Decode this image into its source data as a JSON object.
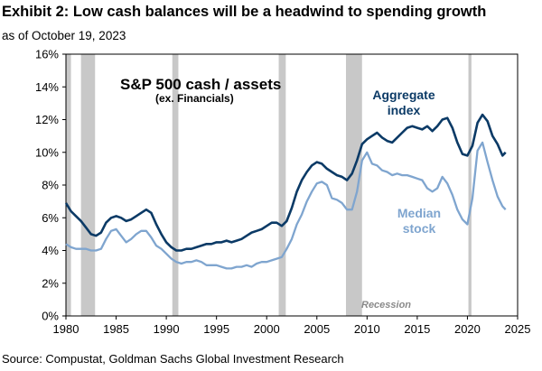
{
  "header": {
    "title": "Exhibit 2: Low cash balances will be a headwind to spending growth",
    "subtitle": "as of October 19, 2023"
  },
  "footer": {
    "source": "Source: Compustat, Goldman Sachs Global Investment Research"
  },
  "colors": {
    "aggregate": "#0b3a66",
    "median": "#7fa5cf",
    "recession": "#c8c8c8",
    "recession_label": "#8a8a8a"
  },
  "chart_data": {
    "type": "line",
    "title": "S&P 500 cash / assets",
    "subtitle": "(ex. Financials)",
    "xlabel": "",
    "ylabel": "",
    "xlim": [
      1980,
      2025
    ],
    "ylim": [
      0,
      16
    ],
    "x_ticks": [
      "1980",
      "1985",
      "1990",
      "1995",
      "2000",
      "2005",
      "2010",
      "2015",
      "2020",
      "2025"
    ],
    "y_ticks": [
      "0%",
      "2%",
      "4%",
      "6%",
      "8%",
      "10%",
      "12%",
      "14%",
      "16%"
    ],
    "recession_label": "Recession",
    "recessions": [
      [
        1980.0,
        1980.5
      ],
      [
        1981.5,
        1982.9
      ],
      [
        1990.6,
        1991.2
      ],
      [
        2001.2,
        2001.9
      ],
      [
        2007.9,
        2009.5
      ],
      [
        2020.1,
        2020.4
      ]
    ],
    "series": [
      {
        "name": "Aggregate index",
        "label_lines": [
          "Aggregate",
          "index"
        ],
        "x": [
          1980,
          1980.5,
          1981,
          1981.5,
          1982,
          1982.5,
          1983,
          1983.5,
          1984,
          1984.5,
          1985,
          1985.5,
          1986,
          1986.5,
          1987,
          1987.5,
          1988,
          1988.5,
          1989,
          1989.5,
          1990,
          1990.5,
          1991,
          1991.5,
          1992,
          1992.5,
          1993,
          1993.5,
          1994,
          1994.5,
          1995,
          1995.5,
          1996,
          1996.5,
          1997,
          1997.5,
          1998,
          1998.5,
          1999,
          1999.5,
          2000,
          2000.5,
          2001,
          2001.5,
          2002,
          2002.5,
          2003,
          2003.5,
          2004,
          2004.5,
          2005,
          2005.5,
          2006,
          2006.5,
          2007,
          2007.5,
          2008,
          2008.5,
          2009,
          2009.5,
          2010,
          2010.5,
          2011,
          2011.5,
          2012,
          2012.5,
          2013,
          2013.5,
          2014,
          2014.5,
          2015,
          2015.5,
          2016,
          2016.5,
          2017,
          2017.5,
          2018,
          2018.5,
          2019,
          2019.5,
          2020,
          2020.5,
          2021,
          2021.5,
          2022,
          2022.5,
          2023,
          2023.5,
          2023.8
        ],
        "values": [
          6.9,
          6.4,
          6.1,
          5.8,
          5.4,
          5.0,
          4.9,
          5.1,
          5.7,
          6.0,
          6.1,
          6.0,
          5.8,
          5.9,
          6.1,
          6.3,
          6.5,
          6.3,
          5.6,
          5.0,
          4.5,
          4.2,
          4.0,
          4.0,
          4.1,
          4.1,
          4.2,
          4.3,
          4.4,
          4.4,
          4.5,
          4.5,
          4.6,
          4.5,
          4.6,
          4.7,
          4.9,
          5.1,
          5.2,
          5.3,
          5.5,
          5.7,
          5.7,
          5.5,
          5.8,
          6.6,
          7.6,
          8.3,
          8.8,
          9.2,
          9.4,
          9.3,
          9.0,
          8.8,
          8.6,
          8.5,
          8.3,
          8.7,
          9.5,
          10.5,
          10.8,
          11.0,
          11.2,
          10.9,
          10.7,
          10.6,
          10.9,
          11.2,
          11.5,
          11.6,
          11.5,
          11.4,
          11.6,
          11.3,
          11.6,
          12.0,
          12.1,
          11.5,
          10.6,
          9.9,
          9.8,
          10.4,
          11.8,
          12.3,
          11.9,
          11.0,
          10.5,
          9.8,
          10.0
        ]
      },
      {
        "name": "Median stock",
        "label_lines": [
          "Median",
          "stock"
        ],
        "x": [
          1980,
          1980.5,
          1981,
          1981.5,
          1982,
          1982.5,
          1983,
          1983.5,
          1984,
          1984.5,
          1985,
          1985.5,
          1986,
          1986.5,
          1987,
          1987.5,
          1988,
          1988.5,
          1989,
          1989.5,
          1990,
          1990.5,
          1991,
          1991.5,
          1992,
          1992.5,
          1993,
          1993.5,
          1994,
          1994.5,
          1995,
          1995.5,
          1996,
          1996.5,
          1997,
          1997.5,
          1998,
          1998.5,
          1999,
          1999.5,
          2000,
          2000.5,
          2001,
          2001.5,
          2002,
          2002.5,
          2003,
          2003.5,
          2004,
          2004.5,
          2005,
          2005.5,
          2006,
          2006.5,
          2007,
          2007.5,
          2008,
          2008.5,
          2009,
          2009.5,
          2010,
          2010.5,
          2011,
          2011.5,
          2012,
          2012.5,
          2013,
          2013.5,
          2014,
          2014.5,
          2015,
          2015.5,
          2016,
          2016.5,
          2017,
          2017.5,
          2018,
          2018.5,
          2019,
          2019.5,
          2020,
          2020.5,
          2021,
          2021.5,
          2022,
          2022.5,
          2023,
          2023.5,
          2023.8
        ],
        "values": [
          4.4,
          4.2,
          4.1,
          4.1,
          4.1,
          4.0,
          4.0,
          4.1,
          4.7,
          5.2,
          5.3,
          4.9,
          4.5,
          4.7,
          5.0,
          5.2,
          5.2,
          4.8,
          4.3,
          4.1,
          3.8,
          3.5,
          3.3,
          3.2,
          3.3,
          3.3,
          3.4,
          3.3,
          3.1,
          3.1,
          3.1,
          3.0,
          2.9,
          2.9,
          3.0,
          3.0,
          3.1,
          3.0,
          3.2,
          3.3,
          3.3,
          3.4,
          3.5,
          3.6,
          4.1,
          4.7,
          5.6,
          6.2,
          7.0,
          7.6,
          8.1,
          8.2,
          8.0,
          7.2,
          7.1,
          6.9,
          6.5,
          6.5,
          7.6,
          9.5,
          10.0,
          9.3,
          9.2,
          8.9,
          8.8,
          8.6,
          8.7,
          8.6,
          8.6,
          8.5,
          8.4,
          8.3,
          7.8,
          7.6,
          7.8,
          8.5,
          8.1,
          7.4,
          6.5,
          5.9,
          5.6,
          7.2,
          10.1,
          10.6,
          9.4,
          8.3,
          7.3,
          6.7,
          6.5
        ]
      }
    ]
  }
}
